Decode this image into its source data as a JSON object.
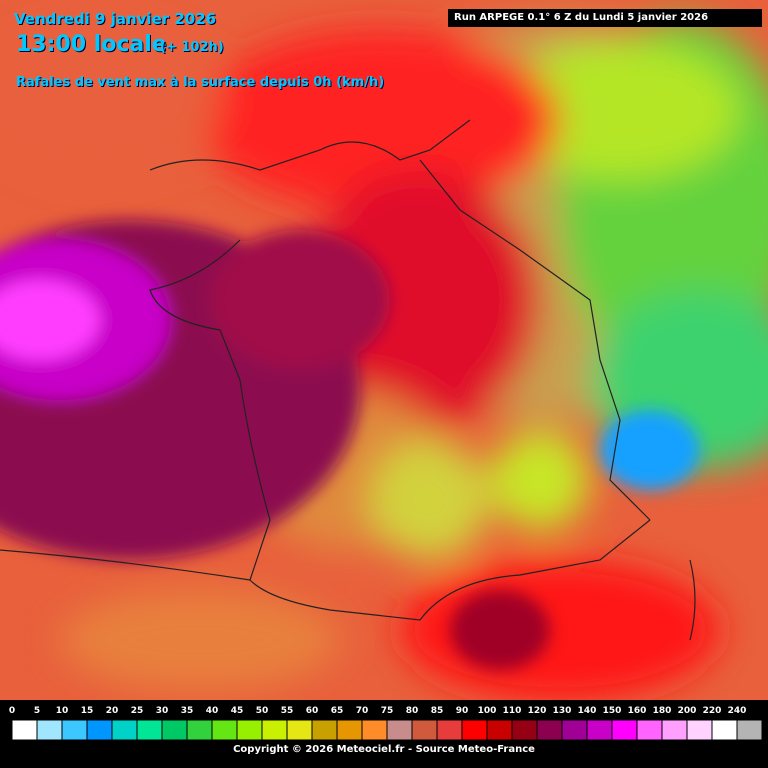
{
  "header": {
    "date": "Vendredi 9 janvier 2026",
    "time": "13:00 locale",
    "lead": "(+ 102h)",
    "parameter": "Rafales de vent max à la surface depuis 0h (km/h)",
    "run": "Run ARPEGE 0.1° 6 Z du Lundi 5 janvier 2026"
  },
  "legend": {
    "items": [
      {
        "value": 0,
        "color": "#ffffff"
      },
      {
        "value": 5,
        "color": "#a0e6ff"
      },
      {
        "value": 10,
        "color": "#3cc8ff"
      },
      {
        "value": 15,
        "color": "#0096ff"
      },
      {
        "value": 20,
        "color": "#00d2c8"
      },
      {
        "value": 25,
        "color": "#00e696"
      },
      {
        "value": 30,
        "color": "#00c864"
      },
      {
        "value": 35,
        "color": "#32d23c"
      },
      {
        "value": 40,
        "color": "#64e614"
      },
      {
        "value": 45,
        "color": "#96f000"
      },
      {
        "value": 50,
        "color": "#c8f000"
      },
      {
        "value": 55,
        "color": "#e6e614"
      },
      {
        "value": 60,
        "color": "#c8a000"
      },
      {
        "value": 65,
        "color": "#e69600"
      },
      {
        "value": 70,
        "color": "#ff8c28"
      },
      {
        "value": 75,
        "color": "#c88c8c"
      },
      {
        "value": 80,
        "color": "#d25a3c"
      },
      {
        "value": 85,
        "color": "#e63c3c"
      },
      {
        "value": 90,
        "color": "#ff0000"
      },
      {
        "value": 100,
        "color": "#c80000"
      },
      {
        "value": 110,
        "color": "#960014"
      },
      {
        "value": 120,
        "color": "#8c0050"
      },
      {
        "value": 130,
        "color": "#a00096"
      },
      {
        "value": 140,
        "color": "#c800c8"
      },
      {
        "value": 150,
        "color": "#ff00ff"
      },
      {
        "value": 160,
        "color": "#ff64ff"
      },
      {
        "value": 180,
        "color": "#ffa0ff"
      },
      {
        "value": 200,
        "color": "#ffd2ff"
      },
      {
        "value": 220,
        "color": "#ffffff"
      },
      {
        "value": 240,
        "color": "#b4b4b4"
      }
    ]
  },
  "footer": {
    "copyright": "Copyright © 2026 Meteociel.fr - Source Meteo-France"
  }
}
